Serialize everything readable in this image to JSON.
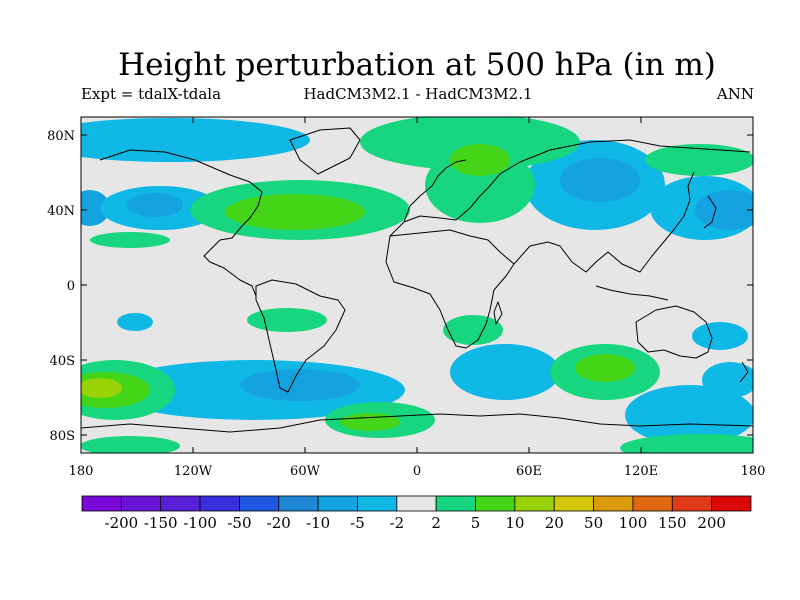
{
  "title": "Height perturbation at 500 hPa (in m)",
  "subtitle_left": "Expt = tdalX-tdala",
  "subtitle_center": "HadCM3M2.1 - HadCM3M2.1",
  "subtitle_right": "ANN",
  "lat_labels": [
    "80N",
    "40N",
    "0",
    "40S",
    "80S"
  ],
  "lon_labels": [
    "180",
    "120W",
    "60W",
    "0",
    "60E",
    "120E",
    "180"
  ],
  "colorbar": {
    "labels": [
      "-200",
      "-150",
      "-100",
      "-50",
      "-20",
      "-10",
      "-5",
      "-2",
      "2",
      "5",
      "10",
      "20",
      "50",
      "100",
      "150",
      "200"
    ],
    "colors": [
      "#7a08d8",
      "#6a14d8",
      "#5a20d8",
      "#3a2ee0",
      "#1e58e0",
      "#1e88d6",
      "#14a2e0",
      "#10b8e6",
      "#e6e6e6",
      "#18d680",
      "#44d418",
      "#9ad208",
      "#d2c808",
      "#dc9a08",
      "#e06810",
      "#e03a18",
      "#dc0808"
    ]
  },
  "palette": {
    "background": "#e6e6e6",
    "neg_light": "#10b8e6",
    "neg_mid": "#14a2e0",
    "neg_strong": "#1e88d6",
    "neg_stronger": "#1e58e0",
    "pos_light": "#18d680",
    "pos_mid": "#44d418",
    "pos_strong": "#9ad208"
  }
}
